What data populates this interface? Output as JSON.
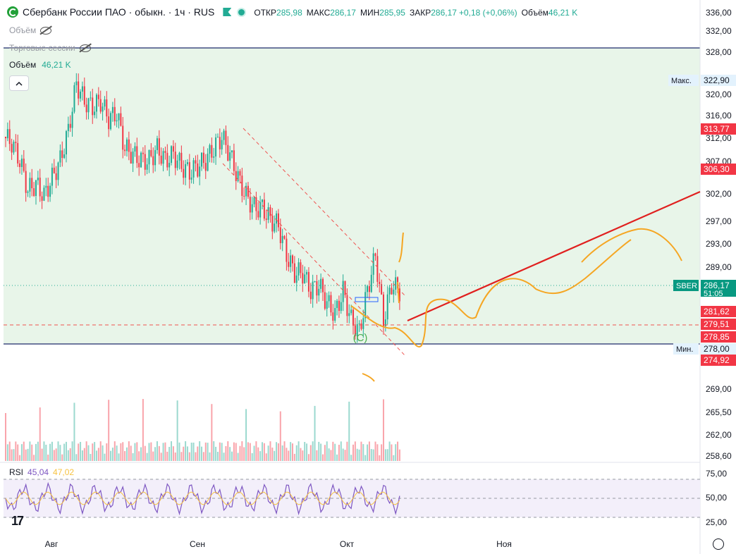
{
  "header": {
    "title": "Сбербанк России ПАО · обыкн. · 1ч · RUS",
    "ohlc": [
      {
        "label": "ОТКР",
        "value": "285,98"
      },
      {
        "label": "МАКС",
        "value": "286,17"
      },
      {
        "label": "МИН",
        "value": "285,95"
      },
      {
        "label": "ЗАКР",
        "value": "286,17"
      },
      {
        "label": "",
        "value": "+0,18 (+0,06%)"
      },
      {
        "label": "Объём",
        "value": "46,21 K"
      }
    ],
    "row_volume": "Объём",
    "row_sessions": "Торговые сессии",
    "volume_label": "Объём",
    "volume_value": "46,21 K"
  },
  "rsi": {
    "label": "RSI",
    "v1": "45,04",
    "v2": "47,02"
  },
  "colors": {
    "up": "#22ab94",
    "down": "#f23645",
    "bg_zone": "#e8f5e9",
    "rsi_line": "#7e57c2",
    "rsi_ma": "#f7c342",
    "drawing": "#f5a623",
    "trend": "#e0201f"
  },
  "chart_data": {
    "type": "candlestick",
    "price_axis_ticks": [
      "336,00",
      "332,00",
      "328,00",
      "320,00",
      "316,00",
      "312,00",
      "307,00",
      "302,00",
      "297,00",
      "293,00",
      "289,00",
      "281,62",
      "278,00",
      "269,00",
      "265,50",
      "262,00",
      "258,60"
    ],
    "tick_values": [
      336,
      332,
      328,
      320,
      316,
      312,
      307,
      302,
      297,
      293,
      289,
      281.62,
      278,
      269,
      265.5,
      262,
      258.6
    ],
    "marked_levels": [
      {
        "label": "Макс.",
        "value": "322,90",
        "kind": "max"
      },
      {
        "label": "",
        "value": "313,77",
        "kind": "red"
      },
      {
        "label": "",
        "value": "306,30",
        "kind": "red"
      },
      {
        "label": "SBER",
        "value": "286,17",
        "sub": "51:05",
        "kind": "current"
      },
      {
        "label": "",
        "value": "281,62",
        "kind": "red"
      },
      {
        "label": "",
        "value": "279,51",
        "kind": "red"
      },
      {
        "label": "",
        "value": "278,85",
        "kind": "red"
      },
      {
        "label": "Мин.",
        "value": "278,00",
        "kind": "min"
      },
      {
        "label": "",
        "value": "274,92",
        "kind": "red"
      }
    ],
    "x_labels": [
      "Авг",
      "Сен",
      "Окт",
      "Ноя"
    ],
    "wave_label": "(C)",
    "rsi_ticks": [
      "75,00",
      "50,00",
      "25,00"
    ],
    "close_path": [
      313,
      312,
      309,
      304,
      305,
      303,
      306,
      309,
      314,
      322,
      319,
      318,
      319,
      316,
      317,
      311,
      310,
      309,
      309,
      311,
      309,
      310,
      308,
      307,
      308,
      309,
      311,
      313,
      310,
      306,
      303,
      301,
      301,
      299,
      298,
      293,
      290,
      290,
      287,
      288,
      285,
      283,
      287,
      282,
      280,
      287,
      293,
      282,
      288,
      287
    ]
  }
}
